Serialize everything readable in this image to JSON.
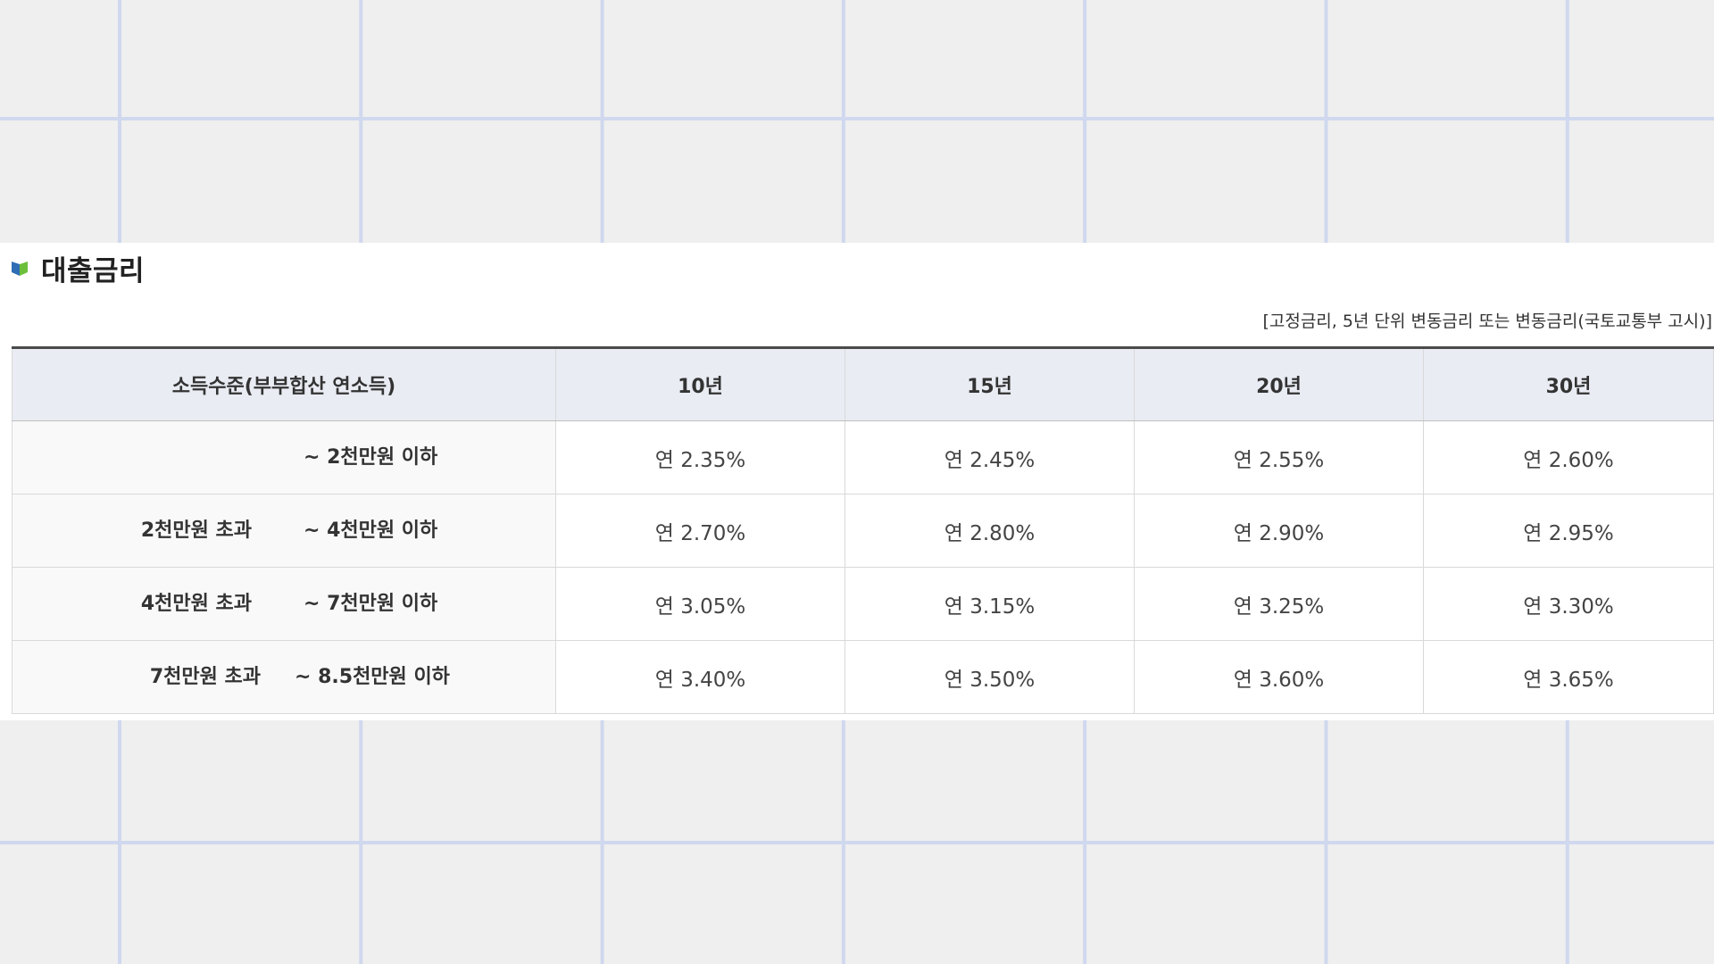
{
  "section": {
    "title": "대출금리",
    "icon": "book-icon",
    "note": "[고정금리, 5년 단위 변동금리 또는 변동금리(국토교통부 고시)]"
  },
  "table": {
    "headers": [
      "소득수준(부부합산 연소득)",
      "10년",
      "15년",
      "20년",
      "30년"
    ],
    "rows": [
      {
        "income_lower": "",
        "income_upper": "~ 2천만원 이하",
        "rates": [
          "연 2.35%",
          "연 2.45%",
          "연 2.55%",
          "연 2.60%"
        ]
      },
      {
        "income_lower": "2천만원 초과",
        "income_upper": "~ 4천만원 이하",
        "rates": [
          "연 2.70%",
          "연 2.80%",
          "연 2.90%",
          "연 2.95%"
        ]
      },
      {
        "income_lower": "4천만원 초과",
        "income_upper": "~ 7천만원 이하",
        "rates": [
          "연 3.05%",
          "연 3.15%",
          "연 3.25%",
          "연 3.30%"
        ]
      },
      {
        "income_lower": "7천만원 초과",
        "income_upper": "~ 8.5천만원 이하",
        "rates": [
          "연 3.40%",
          "연 3.50%",
          "연 3.60%",
          "연 3.65%"
        ]
      }
    ]
  },
  "colors": {
    "header_bg": "#e9ecf3",
    "grid_line": "#cfd8ee",
    "icon_blue": "#2f6db5",
    "icon_green": "#6cbf3a"
  }
}
